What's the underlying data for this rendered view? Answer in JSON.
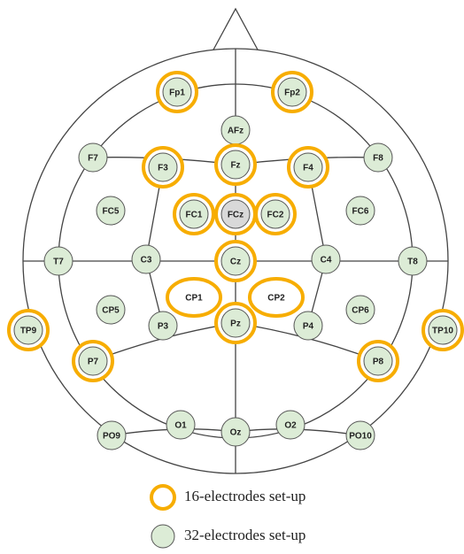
{
  "electrodes": [
    {
      "label": "Fp1"
    },
    {
      "label": "Fp2"
    },
    {
      "label": "AFz"
    },
    {
      "label": "F7"
    },
    {
      "label": "F3"
    },
    {
      "label": "Fz"
    },
    {
      "label": "F4"
    },
    {
      "label": "F8"
    },
    {
      "label": "FC5"
    },
    {
      "label": "FC1"
    },
    {
      "label": "FCz"
    },
    {
      "label": "FC2"
    },
    {
      "label": "FC6"
    },
    {
      "label": "T7"
    },
    {
      "label": "C3"
    },
    {
      "label": "Cz"
    },
    {
      "label": "C4"
    },
    {
      "label": "T8"
    },
    {
      "label": "CP1"
    },
    {
      "label": "CP2"
    },
    {
      "label": "CP5"
    },
    {
      "label": "CP6"
    },
    {
      "label": "TP9"
    },
    {
      "label": "TP10"
    },
    {
      "label": "P7"
    },
    {
      "label": "P3"
    },
    {
      "label": "Pz"
    },
    {
      "label": "P4"
    },
    {
      "label": "P8"
    },
    {
      "label": "O1"
    },
    {
      "label": "Oz"
    },
    {
      "label": "O2"
    },
    {
      "label": "PO9"
    },
    {
      "label": "PO10"
    }
  ],
  "legend": [
    {
      "label": "16-electrodes set-up"
    },
    {
      "label": "32-electrodes set-up"
    }
  ]
}
